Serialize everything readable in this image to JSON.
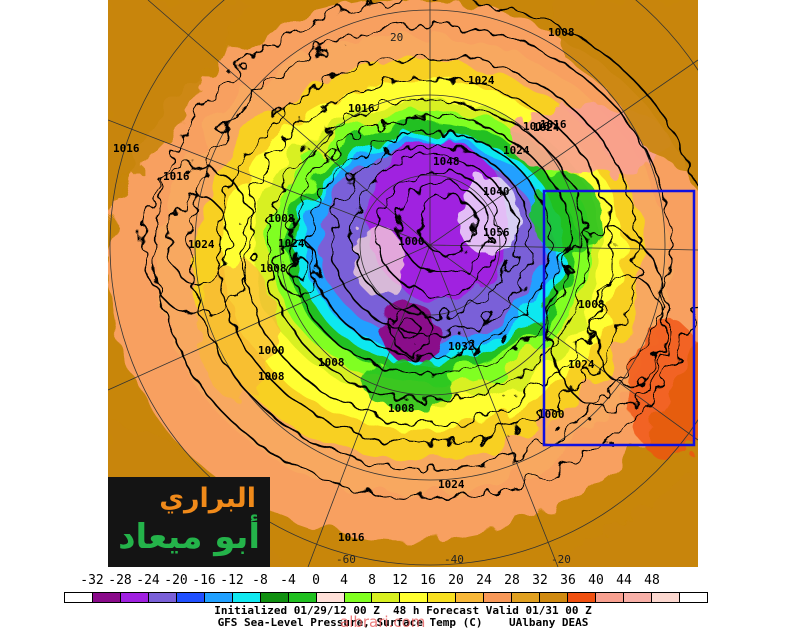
{
  "map": {
    "lat_labels": [
      "20",
      "-60",
      "-40",
      "-20"
    ],
    "pressure_labels": [
      "1008",
      "1016",
      "1024",
      "1016",
      "1008",
      "1000",
      "1024",
      "1008",
      "1016",
      "1024",
      "1016",
      "1024",
      "1016",
      "1008",
      "1008",
      "1024",
      "1024",
      "1000",
      "1008",
      "1008",
      "1016",
      "1000",
      "1048",
      "1040",
      "1056",
      "1032",
      "1008",
      "1024"
    ]
  },
  "logo": {
    "line1": "البراري",
    "line2": "أبو ميعاد"
  },
  "colorbar": {
    "labels": [
      "-32",
      "-28",
      "-24",
      "-20",
      "-16",
      "-12",
      "-8",
      "-4",
      "0",
      "4",
      "8",
      "12",
      "16",
      "20",
      "24",
      "28",
      "32",
      "36",
      "40",
      "44",
      "48"
    ],
    "colors": [
      "#ffffff",
      "#8a0a8a",
      "#a020e0",
      "#7a60d8",
      "#2050ff",
      "#20a0ff",
      "#10e8f0",
      "#109010",
      "#20c020",
      "#ffe0d8",
      "#80ff20",
      "#d8f020",
      "#ffff30",
      "#f8e020",
      "#f8b838",
      "#f89858",
      "#e0a020",
      "#d08a10",
      "#f05010",
      "#f8a090",
      "#f8b0a8",
      "#fcd8d0",
      "#ffffff"
    ]
  },
  "caption": {
    "line1": "Initialized 01/29/12 00 Z  48 h Forecast Valid 01/31 00 Z",
    "line2": "GFS Sea-Level Pressure, Surface Temp (C)    UAlbany DEAS"
  },
  "watermark": "albrari.com"
}
